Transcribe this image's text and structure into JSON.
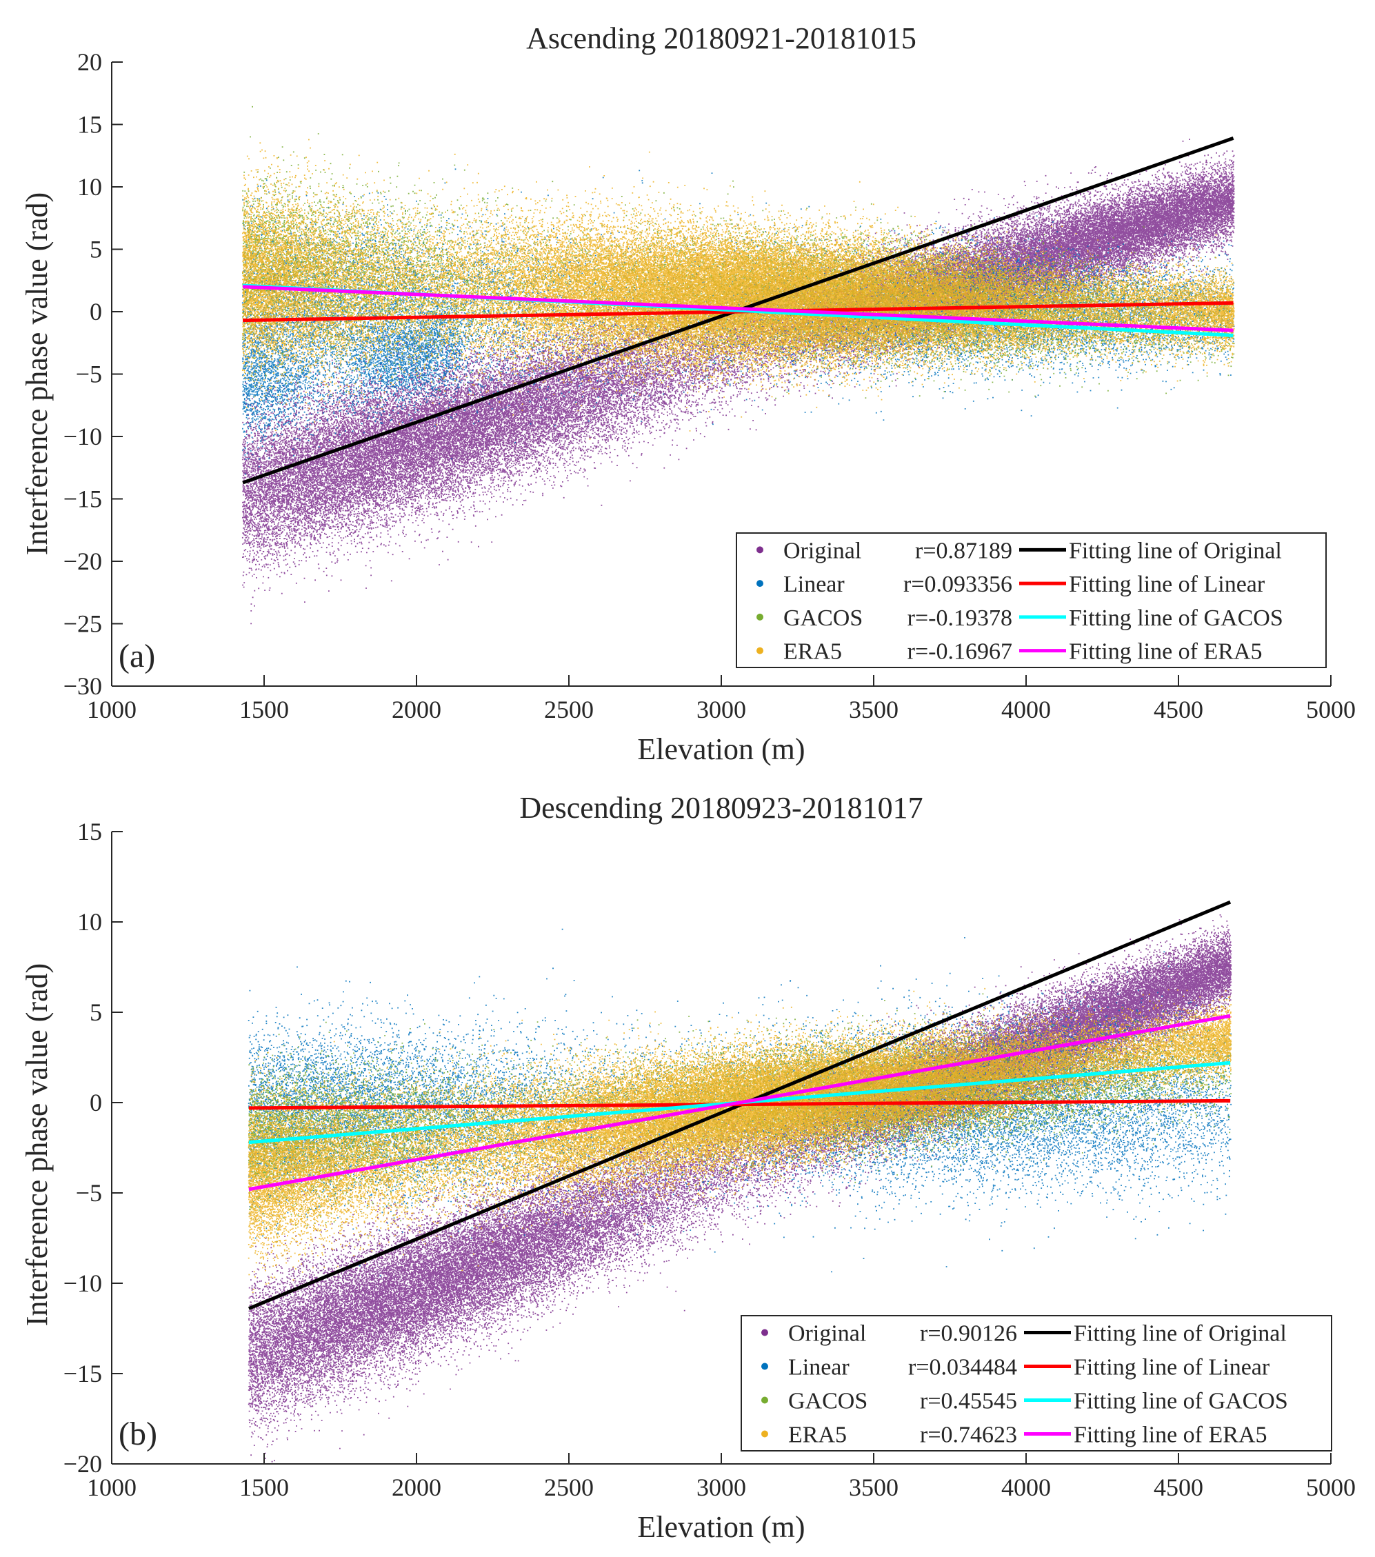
{
  "chart_data": [
    {
      "type": "scatter",
      "panel_label": "(a)",
      "title": "Ascending 20180921-20181015",
      "xlabel": "Elevation (m)",
      "ylabel": "Interference phase value (rad)",
      "xlim": [
        1000,
        5000
      ],
      "ylim": [
        -30,
        20
      ],
      "xticks": [
        1000,
        1500,
        2000,
        2500,
        3000,
        3500,
        4000,
        4500,
        5000
      ],
      "yticks": [
        -30,
        -25,
        -20,
        -15,
        -10,
        -5,
        0,
        5,
        10,
        15,
        20
      ],
      "grid": false,
      "legend_position": "bottom-right",
      "series": [
        {
          "name": "Original",
          "r_text": "r=0.87189",
          "color": "#7e2f8e",
          "fit_label": "Fitting line of Original",
          "fit_color": "#000000",
          "fit": {
            "x": [
              1430,
              4680
            ],
            "y": [
              -13.7,
              13.9
            ]
          },
          "cloud": [
            {
              "x0": 1430,
              "x1": 4680,
              "center0": -14.5,
              "center1": 9.0,
              "spread0": 5.5,
              "spread1": 2.6,
              "density": 1.6
            }
          ]
        },
        {
          "name": "Linear",
          "r_text": "r=0.093356",
          "color": "#0072bd",
          "fit_label": "Fitting line of Linear",
          "fit_color": "#ff0000",
          "fit": {
            "x": [
              1430,
              4680
            ],
            "y": [
              -0.7,
              0.7
            ]
          },
          "cloud": [
            {
              "x0": 1430,
              "x1": 2150,
              "center0": -6.0,
              "center1": -3.0,
              "spread0": 4.0,
              "spread1": 3.0,
              "density": 0.45
            },
            {
              "x0": 1430,
              "x1": 4680,
              "center0": 0.0,
              "center1": 0.0,
              "spread0": 6.5,
              "spread1": 3.4,
              "density": 0.45
            }
          ]
        },
        {
          "name": "GACOS",
          "r_text": "r=-0.19378",
          "color": "#77ac30",
          "fit_label": "Fitting line of GACOS",
          "fit_color": "#00ffff",
          "fit": {
            "x": [
              1430,
              4680
            ],
            "y": [
              2.1,
              -1.9
            ]
          },
          "cloud": [
            {
              "x0": 1430,
              "x1": 4680,
              "center0": 3.5,
              "center1": -0.5,
              "spread0": 6.0,
              "spread1": 3.0,
              "density": 0.55
            }
          ]
        },
        {
          "name": "ERA5",
          "r_text": "r=-0.16967",
          "color": "#edb120",
          "fit_label": "Fitting line of ERA5",
          "fit_color": "#ff00ff",
          "fit": {
            "x": [
              1430,
              4680
            ],
            "y": [
              2.0,
              -1.5
            ]
          },
          "cloud": [
            {
              "x0": 1430,
              "x1": 4680,
              "center0": 2.5,
              "center1": 0.0,
              "spread0": 6.2,
              "spread1": 2.6,
              "density": 2.6
            }
          ]
        }
      ]
    },
    {
      "type": "scatter",
      "panel_label": "(b)",
      "title": "Descending 20180923-20181017",
      "xlabel": "Elevation (m)",
      "ylabel": "Interference phase value (rad)",
      "xlim": [
        1000,
        5000
      ],
      "ylim": [
        -20,
        15
      ],
      "xticks": [
        1000,
        1500,
        2000,
        2500,
        3000,
        3500,
        4000,
        4500,
        5000
      ],
      "yticks": [
        -20,
        -15,
        -10,
        -5,
        0,
        5,
        10,
        15
      ],
      "grid": false,
      "legend_position": "bottom-right",
      "series": [
        {
          "name": "Original",
          "r_text": "r=0.90126",
          "color": "#7e2f8e",
          "fit_label": "Fitting line of Original",
          "fit_color": "#000000",
          "fit": {
            "x": [
              1450,
              4670
            ],
            "y": [
              -11.4,
              11.1
            ]
          },
          "cloud": [
            {
              "x0": 1450,
              "x1": 4670,
              "center0": -14.0,
              "center1": 7.5,
              "spread0": 3.5,
              "spread1": 1.8,
              "density": 1.6
            }
          ]
        },
        {
          "name": "Linear",
          "r_text": "r=0.034484",
          "color": "#0072bd",
          "fit_label": "Fitting line of Linear",
          "fit_color": "#ff0000",
          "fit": {
            "x": [
              1450,
              4670
            ],
            "y": [
              -0.3,
              0.1
            ]
          },
          "cloud": [
            {
              "x0": 1450,
              "x1": 4670,
              "center0": -0.5,
              "center1": 0.0,
              "spread0": 4.0,
              "spread1": 4.2,
              "density": 0.55
            }
          ]
        },
        {
          "name": "GACOS",
          "r_text": "r=0.45545",
          "color": "#77ac30",
          "fit_label": "Fitting line of GACOS",
          "fit_color": "#00ffff",
          "fit": {
            "x": [
              1450,
              4670
            ],
            "y": [
              -2.2,
              2.2
            ]
          },
          "cloud": [
            {
              "x0": 1450,
              "x1": 4670,
              "center0": -2.0,
              "center1": 2.0,
              "spread0": 3.2,
              "spread1": 2.2,
              "density": 0.6
            }
          ]
        },
        {
          "name": "ERA5",
          "r_text": "r=0.74623",
          "color": "#edb120",
          "fit_label": "Fitting line of ERA5",
          "fit_color": "#ff00ff",
          "fit": {
            "x": [
              1450,
              4670
            ],
            "y": [
              -4.8,
              4.8
            ]
          },
          "cloud": [
            {
              "x0": 1450,
              "x1": 4670,
              "center0": -4.0,
              "center1": 3.5,
              "spread0": 3.6,
              "spread1": 1.6,
              "density": 2.4
            }
          ]
        }
      ]
    }
  ]
}
